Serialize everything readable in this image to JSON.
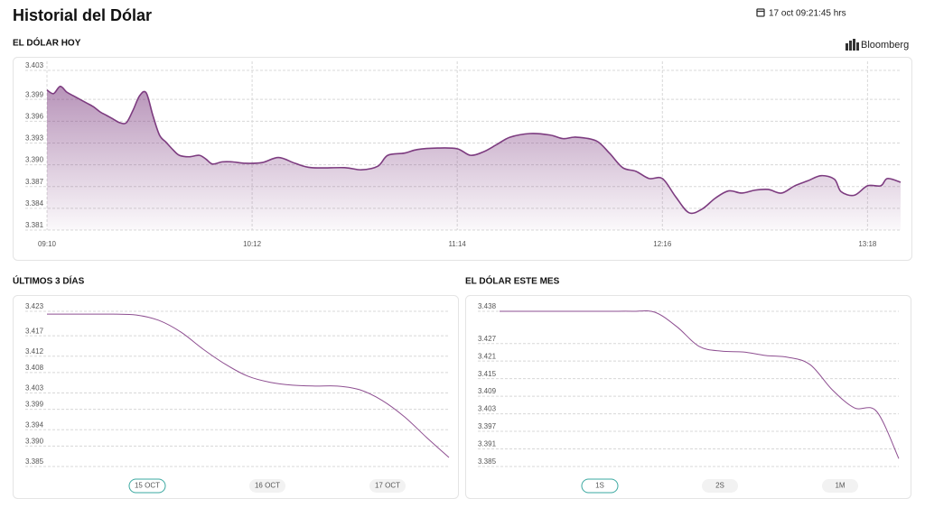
{
  "header": {
    "title": "Historial del Dólar",
    "timestamp": "17 oct 09:21:45 hrs",
    "source": "Bloomberg"
  },
  "chart_data": [
    {
      "type": "area",
      "title": "EL DÓLAR HOY",
      "color": "#7d3c80",
      "grid": true,
      "x": [
        "09:10",
        "09:12",
        "09:14",
        "09:16",
        "09:18",
        "09:20",
        "09:22",
        "09:24",
        "09:26",
        "09:28",
        "09:30",
        "09:32",
        "09:34",
        "09:36",
        "09:38",
        "09:40",
        "09:42",
        "09:44",
        "09:46",
        "09:48",
        "09:50",
        "09:53",
        "09:56",
        "09:58",
        "10:00",
        "10:03",
        "10:06",
        "10:10",
        "10:15",
        "10:20",
        "10:25",
        "10:30",
        "10:40",
        "10:45",
        "10:50",
        "10:53",
        "10:58",
        "11:02",
        "11:08",
        "11:14",
        "11:18",
        "11:22",
        "11:26",
        "11:30",
        "11:36",
        "11:42",
        "11:46",
        "11:50",
        "11:56",
        "12:00",
        "12:04",
        "12:08",
        "12:12",
        "12:16",
        "12:20",
        "12:24",
        "12:28",
        "12:32",
        "12:36",
        "12:40",
        "12:44",
        "12:48",
        "12:52",
        "12:56",
        "13:00",
        "13:04",
        "13:08",
        "13:10",
        "13:14",
        "13:18",
        "13:22",
        "13:24",
        "13:28"
      ],
      "values": [
        3.4003,
        3.3998,
        3.4008,
        3.4,
        3.3995,
        3.399,
        3.3985,
        3.398,
        3.3973,
        3.3968,
        3.3963,
        3.3958,
        3.3958,
        3.3975,
        3.3995,
        3.3999,
        3.3968,
        3.3941,
        3.3931,
        3.3921,
        3.3913,
        3.3911,
        3.3913,
        3.3908,
        3.3901,
        3.3904,
        3.3904,
        3.3902,
        3.3903,
        3.391,
        3.3902,
        3.3896,
        3.3896,
        3.3893,
        3.3898,
        3.3913,
        3.3916,
        3.3921,
        3.3923,
        3.3922,
        3.3913,
        3.3918,
        3.3928,
        3.3938,
        3.3943,
        3.3941,
        3.3936,
        3.3938,
        3.3933,
        3.3916,
        3.3896,
        3.3891,
        3.3881,
        3.3881,
        3.3856,
        3.3834,
        3.3839,
        3.3854,
        3.3864,
        3.3861,
        3.3865,
        3.3866,
        3.3861,
        3.3871,
        3.3878,
        3.3885,
        3.388,
        3.3863,
        3.3858,
        3.3871,
        3.3871,
        3.3881,
        3.3876
      ],
      "xlim": [
        "09:10",
        "13:28"
      ],
      "xticks": [
        "09:10",
        "10:12",
        "11:14",
        "12:16",
        "13:18"
      ],
      "ylim": [
        3.381,
        3.403
      ],
      "yticks": [
        3.381,
        3.384,
        3.387,
        {
          "value": 3.39,
          "label": "3.390"
        },
        3.393,
        3.396,
        3.399,
        3.403
      ]
    },
    {
      "type": "line",
      "title": "ÚLTIMOS 3 DÍAS",
      "color": "#8e4f91",
      "grid": true,
      "values": [
        3.4223,
        3.4223,
        3.4223,
        3.4223,
        3.4221,
        3.4208,
        3.4179,
        3.4137,
        3.41,
        3.4071,
        3.4056,
        3.4049,
        3.4047,
        3.4047,
        3.4038,
        3.4012,
        3.3972,
        3.3921,
        3.3872
      ],
      "ylim": [
        3.385,
        3.423
      ],
      "yticks": [
        3.385,
        {
          "value": 3.39,
          "label": "3.390"
        },
        3.394,
        3.399,
        3.403,
        3.408,
        3.412,
        3.417,
        3.423
      ],
      "ranges": [
        "15 OCT",
        "16 OCT",
        "17 OCT"
      ],
      "active": 0
    },
    {
      "type": "line",
      "title": "EL DÓLAR ESTE MES",
      "color": "#8e4f91",
      "grid": true,
      "values": [
        3.438,
        3.438,
        3.438,
        3.438,
        3.438,
        3.438,
        3.438,
        3.4377,
        3.4327,
        3.426,
        3.4244,
        3.4241,
        3.4229,
        3.4223,
        3.4198,
        3.4112,
        3.405,
        3.4038,
        3.3877
      ],
      "ylim": [
        3.385,
        3.438
      ],
      "yticks": [
        3.385,
        3.391,
        3.397,
        3.403,
        3.409,
        3.415,
        3.421,
        3.427,
        3.438
      ],
      "ranges": [
        "1S",
        "2S",
        "1M"
      ],
      "active": 0
    }
  ]
}
